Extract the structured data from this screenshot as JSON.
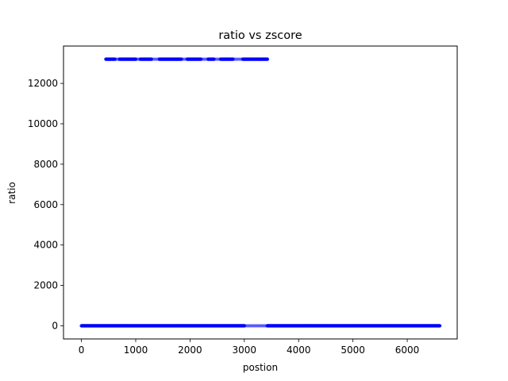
{
  "chart_data": {
    "type": "scatter",
    "title": "ratio vs zscore",
    "xlabel": "postion",
    "ylabel": "ratio",
    "xlim": [
      -330,
      6920
    ],
    "ylim": [
      -650,
      13850
    ],
    "xticks": [
      0,
      1000,
      2000,
      3000,
      4000,
      5000,
      6000
    ],
    "yticks": [
      0,
      2000,
      4000,
      6000,
      8000,
      10000,
      12000
    ],
    "grid": false,
    "legend": "none",
    "marker_color": "#0000ff",
    "series": [
      {
        "segments": [
          {
            "kind": "dense",
            "y": 13200,
            "x_range": [
              450,
              3430
            ],
            "gap_ranges": [
              [
                620,
                700
              ],
              [
                1010,
                1080
              ],
              [
                1300,
                1430
              ],
              [
                1850,
                1940
              ],
              [
                2210,
                2330
              ],
              [
                2450,
                2560
              ],
              [
                2790,
                2960
              ]
            ]
          },
          {
            "kind": "dense",
            "y": 0,
            "x_range": [
              0,
              6600
            ],
            "gap_ranges": [
              [
                3000,
                3420
              ]
            ]
          }
        ]
      }
    ]
  }
}
